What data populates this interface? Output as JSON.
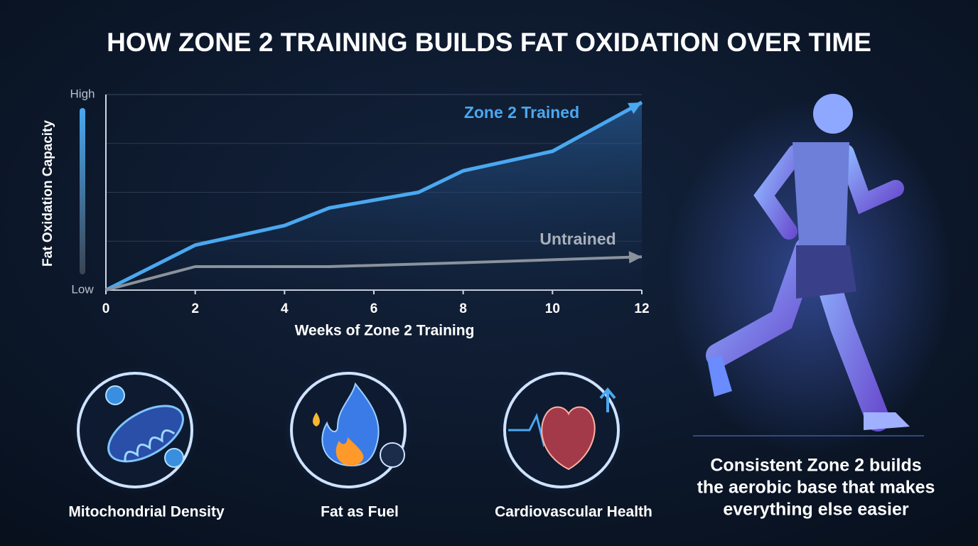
{
  "chart_data": {
    "type": "line",
    "title": "HOW ZONE 2 TRAINING BUILDS FAT OXIDATION OVER TIME",
    "x_label": "Weeks of Zone 2 Training",
    "y_label": "Fat Oxidation Capacity",
    "xlim": [
      0,
      12
    ],
    "xticks": [
      0,
      2,
      4,
      6,
      8,
      10,
      12
    ],
    "ylim": [
      0,
      100
    ],
    "yticks": [
      {
        "value": 0,
        "label": "Low"
      },
      {
        "value": 100,
        "label": "High"
      }
    ],
    "ygrid": [
      25,
      50,
      75
    ],
    "series": [
      {
        "name": "Zone 2 Trained",
        "color": "#4aa8f0",
        "x": [
          0,
          2,
          4,
          5,
          7,
          8,
          10,
          12
        ],
        "values": [
          0,
          23,
          33,
          42,
          50,
          61,
          71,
          96
        ]
      },
      {
        "name": "Untrained",
        "color": "#8a929c",
        "x": [
          0,
          2,
          5,
          8,
          12
        ],
        "values": [
          0,
          12,
          12,
          14,
          17
        ]
      }
    ]
  },
  "benefits": [
    "Mitochondrial Density",
    "Fat as Fuel",
    "Cardiovascular Health"
  ],
  "caption": [
    "Consistent Zone 2 builds",
    "the aerobic base that makes",
    "everything else easier"
  ]
}
